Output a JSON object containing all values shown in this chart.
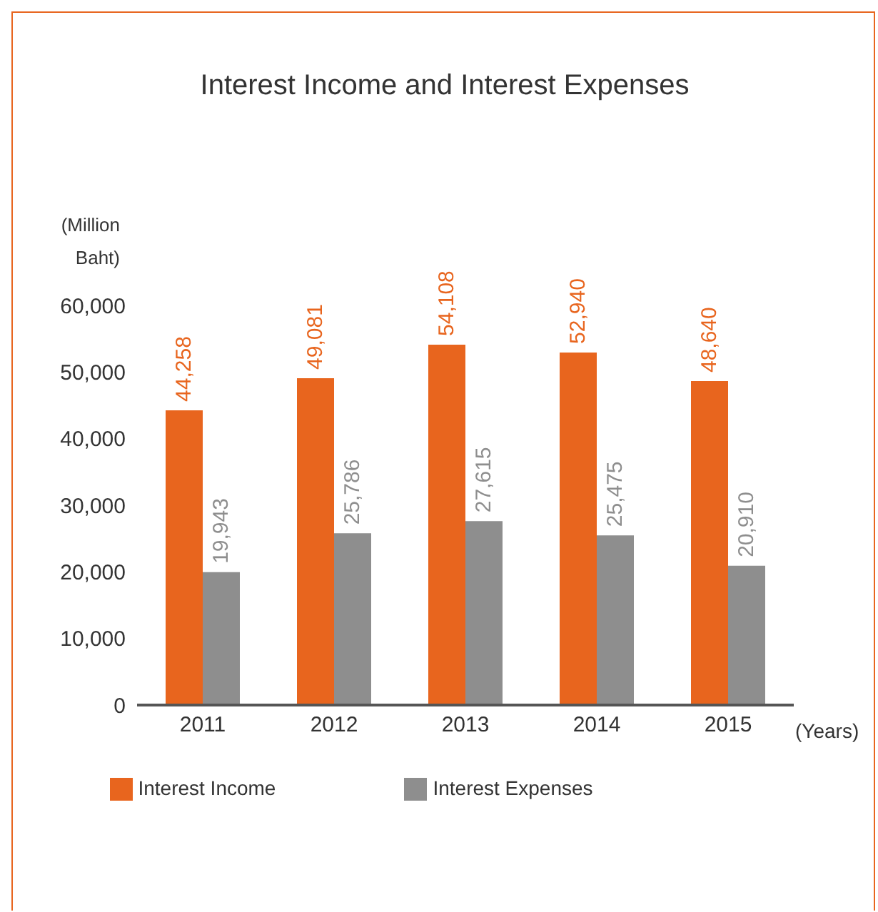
{
  "chart_data": {
    "type": "bar",
    "title": "Interest Income and Interest Expenses",
    "ylabel": "(Million Baht)",
    "xlabel": "(Years)",
    "categories": [
      "2011",
      "2012",
      "2013",
      "2014",
      "2015"
    ],
    "series": [
      {
        "name": "Interest Income",
        "color": "#e8651e",
        "values": [
          44258,
          49081,
          54108,
          52940,
          48640
        ],
        "value_labels": [
          "44,258",
          "49,081",
          "54,108",
          "52,940",
          "48,640"
        ]
      },
      {
        "name": "Interest Expenses",
        "color": "#8e8e8e",
        "values": [
          19943,
          25786,
          27615,
          25475,
          20910
        ],
        "value_labels": [
          "19,943",
          "25,786",
          "27,615",
          "25,475",
          "20,910"
        ]
      }
    ],
    "ylim": [
      0,
      60000
    ],
    "yticks": [
      0,
      {
        "value": 10000,
        "label": "10,000"
      },
      {
        "value": 20000,
        "label": "20,000"
      },
      {
        "value": 30000,
        "label": "30,000"
      },
      {
        "value": 40000,
        "label": "40,000"
      },
      {
        "value": 50000,
        "label": "50,000"
      },
      {
        "value": 60000,
        "label": "60,000"
      }
    ],
    "grid": false,
    "legend": "bottom"
  }
}
